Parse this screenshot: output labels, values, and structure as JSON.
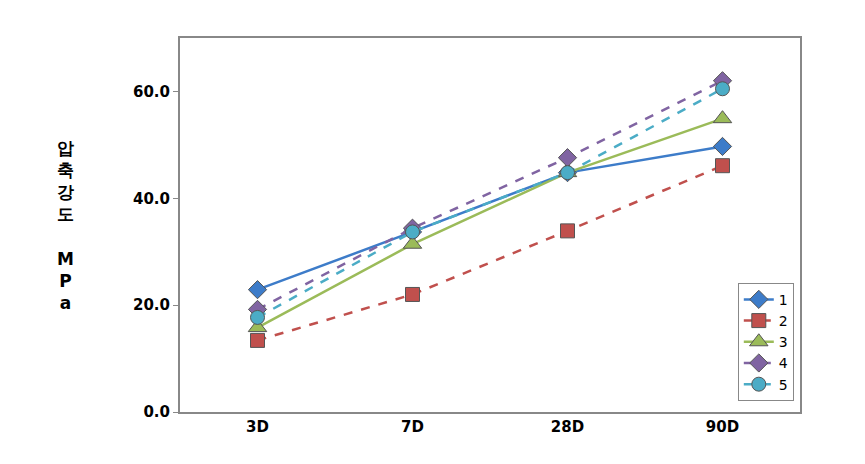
{
  "chart_data": {
    "type": "line",
    "ylabel": "압축강도 MPa",
    "categories": [
      "3D",
      "7D",
      "28D",
      "90D"
    ],
    "series": [
      {
        "name": "1",
        "color": "#3d7cc9",
        "marker": "diamond",
        "line_style": "solid",
        "values": [
          22.9,
          33.7,
          44.8,
          49.7
        ]
      },
      {
        "name": "2",
        "color": "#c0504d",
        "marker": "square",
        "line_style": "dash",
        "values": [
          13.4,
          22.0,
          33.9,
          46.1
        ]
      },
      {
        "name": "3",
        "color": "#9bbb59",
        "marker": "triangle-up",
        "line_style": "solid",
        "values": [
          15.8,
          31.4,
          44.8,
          54.9
        ]
      },
      {
        "name": "4",
        "color": "#8064a2",
        "marker": "diamond",
        "line_style": "dash",
        "values": [
          19.2,
          34.4,
          47.6,
          62.0
        ]
      },
      {
        "name": "5",
        "color": "#4bacc6",
        "marker": "circle",
        "line_style": "dash",
        "values": [
          17.7,
          33.7,
          44.8,
          60.5
        ]
      }
    ],
    "ylim": [
      0,
      70
    ],
    "yticks": [
      {
        "value": 0,
        "label": "0.0"
      },
      {
        "value": 20,
        "label": "20.0"
      },
      {
        "value": 40,
        "label": "40.0"
      },
      {
        "value": 60,
        "label": "60.0"
      }
    ],
    "grid": false,
    "legend": "lower right"
  }
}
